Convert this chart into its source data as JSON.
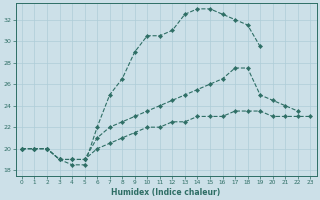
{
  "xlabel": "Humidex (Indice chaleur)",
  "ylabel": "",
  "bg_color": "#cce0e8",
  "grid_color": "#aecdd8",
  "line_color": "#2e6e65",
  "xlim": [
    -0.5,
    23.5
  ],
  "ylim": [
    17.5,
    33.5
  ],
  "xticks": [
    0,
    1,
    2,
    3,
    4,
    5,
    6,
    7,
    8,
    9,
    10,
    11,
    12,
    13,
    14,
    15,
    16,
    17,
    18,
    19,
    20,
    21,
    22,
    23
  ],
  "yticks": [
    18,
    20,
    22,
    24,
    26,
    28,
    30,
    32
  ],
  "line1_x": [
    0,
    1,
    2,
    3,
    4,
    5,
    6,
    7,
    8,
    9,
    10,
    11,
    12,
    13,
    14,
    15,
    16,
    17,
    18,
    19
  ],
  "line1_y": [
    20,
    20,
    20,
    19,
    18.5,
    18.5,
    22,
    25,
    26.5,
    29,
    30.5,
    30.5,
    31,
    32.5,
    33,
    33,
    32.5,
    32,
    31.5,
    29.5
  ],
  "line2_x": [
    0,
    1,
    2,
    3,
    4,
    5,
    6,
    7,
    8,
    9,
    10,
    11,
    12,
    13,
    14,
    15,
    16,
    17,
    18,
    19,
    20,
    21,
    22
  ],
  "line2_y": [
    20,
    20,
    20,
    19,
    19,
    19,
    21.0,
    22,
    22.5,
    23,
    23.5,
    24,
    24.5,
    25,
    25.5,
    26,
    26.5,
    27.5,
    27.5,
    25,
    24.5,
    24,
    23.5
  ],
  "line3_x": [
    0,
    1,
    2,
    3,
    4,
    5,
    6,
    7,
    8,
    9,
    10,
    11,
    12,
    13,
    14,
    15,
    16,
    17,
    18,
    19,
    20,
    21,
    22,
    23
  ],
  "line3_y": [
    20,
    20,
    20,
    19,
    19,
    19,
    20,
    20.5,
    21,
    21.5,
    22,
    22,
    22.5,
    22.5,
    23,
    23,
    23,
    23.5,
    23.5,
    23.5,
    23,
    23,
    23,
    23
  ]
}
